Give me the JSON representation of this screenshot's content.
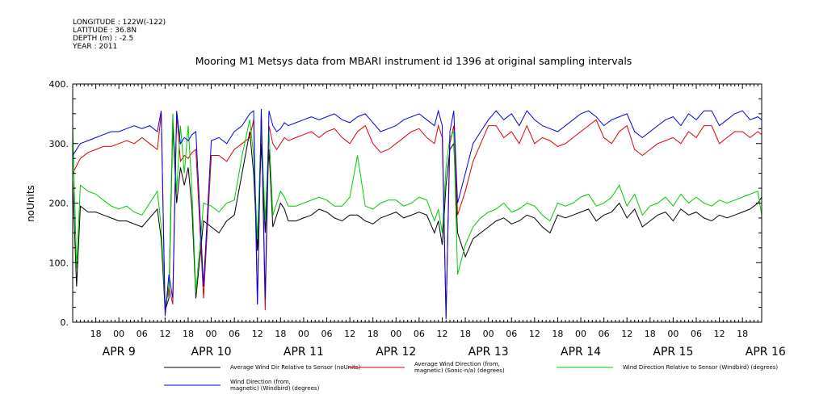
{
  "header": {
    "longitude": "LONGITUDE : 122W(-122)",
    "latitude": "LATITUDE : 36.8N",
    "depth": "DEPTH (m) : -2.5",
    "year": "YEAR : 2011"
  },
  "chart_data": {
    "type": "line",
    "title": "Mooring M1 Metsys data from MBARI instrument id 1396 at original sampling intervals",
    "ylabel": "noUnits",
    "xlabel": "",
    "ylim": [
      0,
      400
    ],
    "y_ticks": [
      "0.",
      "100.",
      "200.",
      "300.",
      "400."
    ],
    "xlim_hours": [
      12,
      191
    ],
    "hour_tick_labels": [
      {
        "h": 18,
        "label": "18"
      },
      {
        "h": 24,
        "label": "00"
      },
      {
        "h": 30,
        "label": "06"
      },
      {
        "h": 36,
        "label": "12"
      },
      {
        "h": 42,
        "label": "18"
      },
      {
        "h": 48,
        "label": "00"
      },
      {
        "h": 54,
        "label": "06"
      },
      {
        "h": 60,
        "label": "12"
      },
      {
        "h": 66,
        "label": "18"
      },
      {
        "h": 72,
        "label": "00"
      },
      {
        "h": 78,
        "label": "06"
      },
      {
        "h": 84,
        "label": "12"
      },
      {
        "h": 90,
        "label": "18"
      },
      {
        "h": 96,
        "label": "00"
      },
      {
        "h": 102,
        "label": "06"
      },
      {
        "h": 108,
        "label": "12"
      },
      {
        "h": 114,
        "label": "18"
      },
      {
        "h": 120,
        "label": "00"
      },
      {
        "h": 126,
        "label": "06"
      },
      {
        "h": 132,
        "label": "12"
      },
      {
        "h": 138,
        "label": "18"
      },
      {
        "h": 144,
        "label": "00"
      },
      {
        "h": 150,
        "label": "06"
      },
      {
        "h": 156,
        "label": "12"
      },
      {
        "h": 162,
        "label": "18"
      },
      {
        "h": 168,
        "label": "00"
      },
      {
        "h": 174,
        "label": "06"
      },
      {
        "h": 180,
        "label": "12"
      },
      {
        "h": 186,
        "label": "18"
      }
    ],
    "day_labels": [
      {
        "h": 24,
        "label": "APR  9"
      },
      {
        "h": 48,
        "label": "APR 10"
      },
      {
        "h": 72,
        "label": "APR 11"
      },
      {
        "h": 96,
        "label": "APR 12"
      },
      {
        "h": 120,
        "label": "APR 13"
      },
      {
        "h": 144,
        "label": "APR 14"
      },
      {
        "h": 168,
        "label": "APR 15"
      },
      {
        "h": 192,
        "label": "APR 16"
      }
    ],
    "series": [
      {
        "name": "Average Wind Dir Relative to Sensor (noUnits)",
        "color": "#000000",
        "x": [
          12,
          13,
          14,
          16,
          18,
          20,
          22,
          24,
          26,
          28,
          30,
          32,
          34,
          35,
          36,
          37,
          38,
          39,
          40,
          41,
          42,
          43,
          44,
          46,
          48,
          50,
          52,
          54,
          56,
          58,
          59,
          60,
          61,
          62,
          63,
          64,
          65,
          66,
          67,
          68,
          70,
          72,
          74,
          76,
          78,
          80,
          82,
          84,
          86,
          88,
          90,
          92,
          94,
          96,
          98,
          100,
          102,
          104,
          106,
          107,
          108,
          109,
          110,
          111,
          112,
          114,
          116,
          118,
          120,
          122,
          124,
          126,
          128,
          130,
          132,
          134,
          136,
          138,
          140,
          142,
          144,
          146,
          148,
          150,
          152,
          154,
          156,
          158,
          160,
          162,
          164,
          166,
          168,
          170,
          172,
          174,
          176,
          178,
          180,
          182,
          184,
          186,
          188,
          190,
          191
        ],
        "y": [
          240,
          60,
          195,
          185,
          185,
          180,
          175,
          170,
          170,
          165,
          160,
          175,
          190,
          140,
          20,
          40,
          330,
          200,
          260,
          230,
          260,
          190,
          40,
          170,
          160,
          150,
          170,
          180,
          250,
          320,
          250,
          120,
          300,
          150,
          290,
          160,
          180,
          200,
          190,
          170,
          170,
          175,
          180,
          190,
          185,
          175,
          170,
          180,
          180,
          170,
          165,
          175,
          180,
          185,
          175,
          180,
          185,
          180,
          150,
          170,
          130,
          230,
          290,
          300,
          150,
          110,
          140,
          150,
          160,
          170,
          175,
          165,
          170,
          180,
          175,
          160,
          150,
          180,
          175,
          180,
          185,
          190,
          170,
          180,
          185,
          200,
          175,
          190,
          160,
          170,
          180,
          185,
          170,
          190,
          180,
          185,
          175,
          170,
          180,
          175,
          180,
          185,
          190,
          200,
          210
        ]
      },
      {
        "name": "Average Wind Direction (from, magnetic) (Sonic-n/a) (degrees)",
        "color": "#e00000",
        "x": [
          12,
          14,
          16,
          18,
          20,
          22,
          24,
          26,
          28,
          30,
          32,
          34,
          35,
          36,
          37,
          38,
          39,
          40,
          41,
          42,
          43,
          44,
          46,
          48,
          50,
          52,
          54,
          56,
          58,
          59,
          60,
          61,
          62,
          63,
          64,
          65,
          66,
          67,
          68,
          70,
          72,
          74,
          76,
          78,
          80,
          82,
          84,
          86,
          88,
          90,
          92,
          94,
          96,
          98,
          100,
          102,
          104,
          106,
          107,
          108,
          109,
          110,
          111,
          112,
          114,
          116,
          118,
          120,
          122,
          124,
          126,
          128,
          130,
          132,
          134,
          136,
          138,
          140,
          142,
          144,
          146,
          148,
          150,
          152,
          154,
          156,
          158,
          160,
          162,
          164,
          166,
          168,
          170,
          172,
          174,
          176,
          178,
          180,
          182,
          184,
          186,
          188,
          190,
          191
        ],
        "y": [
          250,
          275,
          285,
          290,
          295,
          295,
          300,
          305,
          300,
          310,
          300,
          290,
          350,
          20,
          60,
          30,
          350,
          270,
          280,
          275,
          285,
          290,
          40,
          280,
          280,
          270,
          290,
          300,
          310,
          340,
          30,
          350,
          20,
          330,
          300,
          290,
          300,
          310,
          305,
          310,
          315,
          320,
          310,
          320,
          325,
          310,
          300,
          320,
          330,
          300,
          285,
          290,
          300,
          310,
          320,
          325,
          310,
          300,
          330,
          310,
          10,
          300,
          330,
          180,
          220,
          270,
          300,
          330,
          330,
          310,
          320,
          300,
          330,
          300,
          310,
          305,
          295,
          300,
          310,
          320,
          330,
          340,
          310,
          300,
          320,
          330,
          290,
          280,
          290,
          300,
          305,
          310,
          300,
          320,
          310,
          330,
          330,
          300,
          310,
          320,
          320,
          310,
          320,
          315
        ]
      },
      {
        "name": "Wind Direction Relative to Sensor (Windbird) (degrees)",
        "color": "#00cc00",
        "x": [
          12,
          13,
          14,
          16,
          18,
          20,
          22,
          24,
          26,
          28,
          30,
          32,
          34,
          35,
          36,
          37,
          38,
          39,
          40,
          41,
          42,
          43,
          44,
          46,
          48,
          50,
          52,
          54,
          56,
          58,
          59,
          60,
          61,
          62,
          63,
          64,
          65,
          66,
          67,
          68,
          70,
          72,
          74,
          76,
          78,
          80,
          82,
          84,
          86,
          88,
          90,
          92,
          94,
          96,
          98,
          100,
          102,
          104,
          106,
          107,
          108,
          109,
          110,
          111,
          112,
          114,
          116,
          118,
          120,
          122,
          124,
          126,
          128,
          130,
          132,
          134,
          136,
          138,
          140,
          142,
          144,
          146,
          148,
          150,
          152,
          154,
          156,
          158,
          160,
          162,
          164,
          166,
          168,
          170,
          172,
          174,
          176,
          178,
          180,
          182,
          184,
          186,
          188,
          190,
          191
        ],
        "y": [
          330,
          90,
          230,
          220,
          215,
          205,
          195,
          190,
          195,
          185,
          180,
          200,
          220,
          160,
          30,
          50,
          350,
          220,
          330,
          250,
          330,
          220,
          50,
          200,
          195,
          185,
          200,
          205,
          280,
          340,
          280,
          140,
          330,
          170,
          320,
          180,
          200,
          220,
          210,
          195,
          195,
          200,
          205,
          210,
          205,
          195,
          195,
          210,
          280,
          195,
          190,
          200,
          205,
          205,
          195,
          200,
          210,
          205,
          170,
          190,
          150,
          260,
          310,
          320,
          80,
          130,
          160,
          175,
          185,
          190,
          200,
          185,
          190,
          200,
          195,
          180,
          170,
          200,
          195,
          200,
          210,
          215,
          195,
          200,
          210,
          230,
          195,
          215,
          180,
          195,
          200,
          210,
          195,
          215,
          200,
          210,
          200,
          195,
          205,
          200,
          205,
          210,
          215,
          220,
          180
        ]
      },
      {
        "name": "Wind Direction (from, magnetic) (Windbird) (degrees)",
        "color": "#0000e0",
        "x": [
          12,
          14,
          16,
          18,
          20,
          22,
          24,
          26,
          28,
          30,
          32,
          34,
          35,
          36,
          37,
          38,
          39,
          40,
          41,
          42,
          43,
          44,
          46,
          48,
          50,
          52,
          54,
          56,
          58,
          59,
          60,
          61,
          62,
          63,
          64,
          65,
          66,
          67,
          68,
          70,
          72,
          74,
          76,
          78,
          80,
          82,
          84,
          86,
          88,
          90,
          92,
          94,
          96,
          98,
          100,
          102,
          104,
          106,
          107,
          108,
          109,
          110,
          111,
          112,
          114,
          116,
          118,
          120,
          122,
          124,
          126,
          128,
          130,
          132,
          134,
          136,
          138,
          140,
          142,
          144,
          146,
          148,
          150,
          152,
          154,
          156,
          158,
          160,
          162,
          164,
          166,
          168,
          170,
          172,
          174,
          176,
          178,
          180,
          182,
          184,
          186,
          188,
          190,
          191
        ],
        "y": [
          280,
          300,
          305,
          310,
          315,
          320,
          320,
          325,
          330,
          325,
          330,
          320,
          355,
          10,
          80,
          40,
          355,
          300,
          310,
          305,
          315,
          320,
          60,
          305,
          310,
          300,
          320,
          330,
          350,
          355,
          30,
          358,
          40,
          355,
          330,
          320,
          325,
          335,
          330,
          335,
          340,
          345,
          340,
          345,
          350,
          340,
          335,
          345,
          350,
          335,
          320,
          325,
          330,
          340,
          345,
          350,
          340,
          330,
          355,
          330,
          5,
          320,
          355,
          200,
          250,
          300,
          320,
          340,
          355,
          340,
          350,
          330,
          355,
          340,
          330,
          325,
          320,
          330,
          340,
          350,
          355,
          345,
          330,
          340,
          345,
          350,
          320,
          310,
          320,
          330,
          340,
          345,
          330,
          350,
          340,
          355,
          355,
          330,
          340,
          350,
          355,
          340,
          345,
          340
        ]
      }
    ]
  }
}
